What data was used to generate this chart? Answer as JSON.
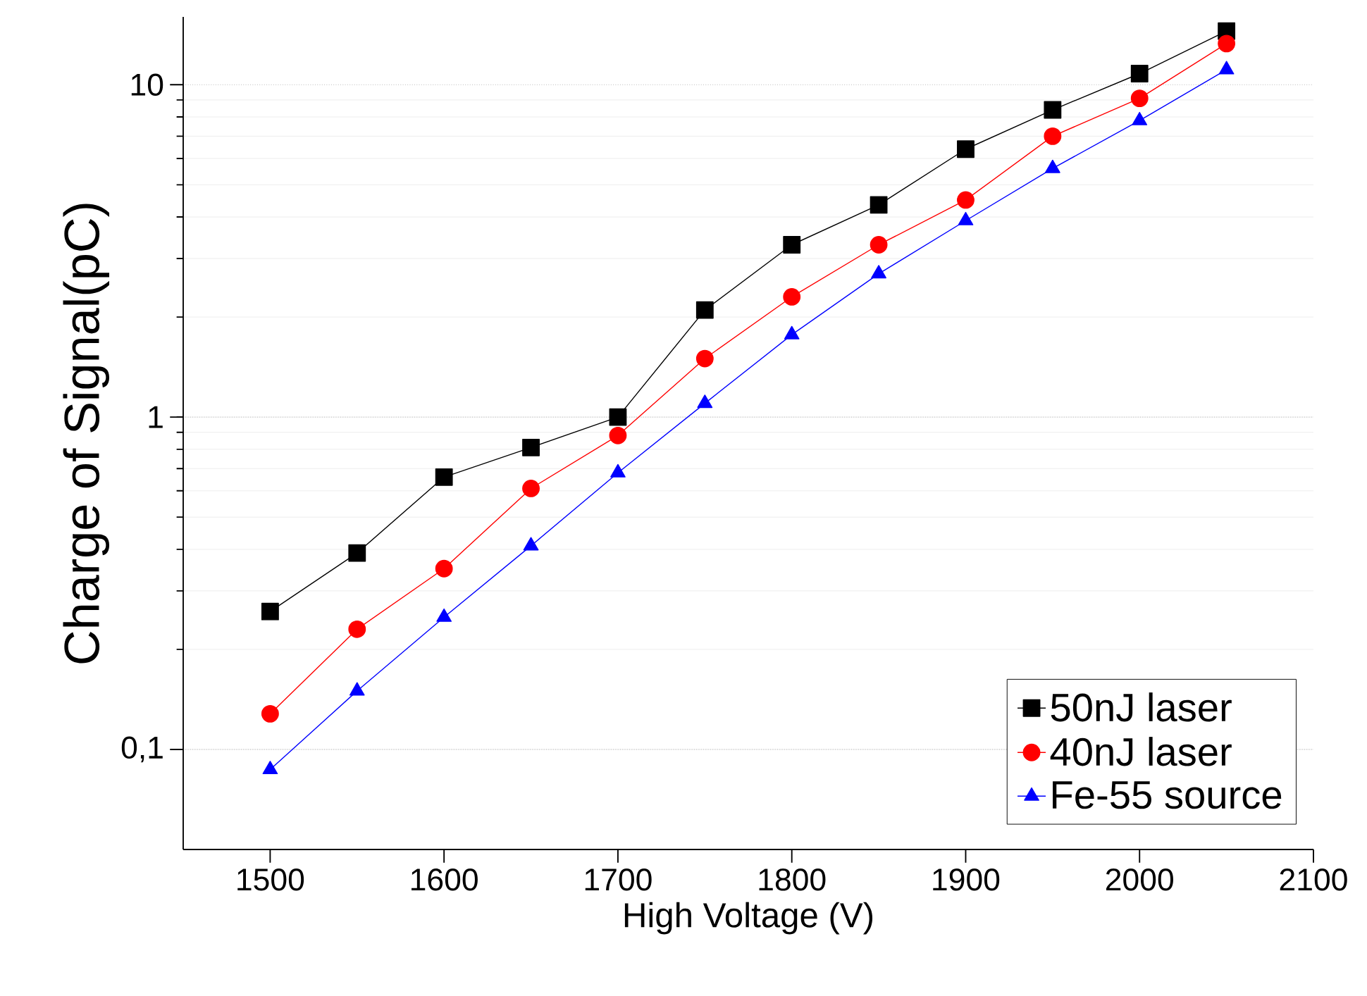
{
  "chart_data": {
    "type": "line",
    "xlabel": "High Voltage (V)",
    "ylabel": "Charge of Signal(pC)",
    "x": [
      1500,
      1550,
      1600,
      1650,
      1700,
      1750,
      1800,
      1850,
      1900,
      1950,
      2000,
      2050
    ],
    "series": [
      {
        "name": "50nJ laser",
        "color": "#000000",
        "marker": "square",
        "values": [
          0.26,
          0.39,
          0.66,
          0.81,
          1.0,
          2.1,
          3.3,
          4.35,
          6.4,
          8.4,
          10.8,
          14.5
        ]
      },
      {
        "name": "40nJ laser",
        "color": "#ff0000",
        "marker": "circle",
        "values": [
          0.128,
          0.23,
          0.35,
          0.61,
          0.88,
          1.5,
          2.3,
          3.3,
          4.5,
          7.0,
          9.1,
          13.3
        ]
      },
      {
        "name": "Fe-55 source",
        "color": "#0000ff",
        "marker": "triangle",
        "values": [
          0.087,
          0.15,
          0.25,
          0.41,
          0.68,
          1.1,
          1.77,
          2.7,
          3.9,
          5.6,
          7.8,
          11.1
        ]
      }
    ],
    "xlim": [
      1450,
      2100
    ],
    "xticks": [
      1500,
      1600,
      1700,
      1800,
      1900,
      2000,
      2100
    ],
    "ylim": [
      0.05,
      16
    ],
    "yticks": [
      {
        "value": 0.1,
        "label": "0,1"
      },
      1,
      10
    ],
    "log": "y",
    "grid": "y",
    "legend": "bottom right",
    "line_style": "solid"
  }
}
